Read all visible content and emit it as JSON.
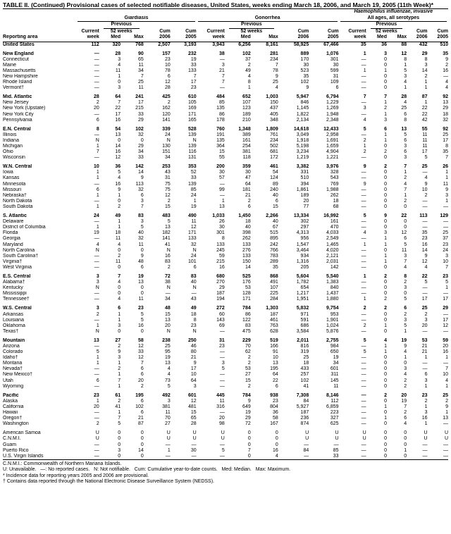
{
  "title": "TABLE II. (Continued) Provisional cases of selected notifiable diseases, United States, weeks ending March 18, 2006, and March 19, 2005 (11th Week)*",
  "groups": {
    "giardiasis": "Giardiasis",
    "gonorrhea": "Gonorrhea",
    "haemophilus_line1": "Haemophilus influenzae, invasive",
    "haemophilus_line2": "All ages, all serotypes"
  },
  "headers": {
    "previous": "Previous",
    "current": "Current",
    "weeks": "52 weeks",
    "cum": "Cum",
    "area": "Reporting area",
    "week": "week",
    "med": "Med",
    "max": "Max",
    "y2006": "2006",
    "y2005": "2005"
  },
  "rows": [
    {
      "area": "United States",
      "type": "us",
      "v": [
        "112",
        "320",
        "768",
        "2,507",
        "3,193",
        "3,943",
        "6,256",
        "8,161",
        "58,925",
        "67,466",
        "35",
        "36",
        "88",
        "432",
        "510"
      ]
    },
    {
      "type": "gap"
    },
    {
      "area": "New England",
      "type": "region",
      "v": [
        "—",
        "28",
        "90",
        "157",
        "232",
        "38",
        "102",
        "281",
        "889",
        "1,076",
        "1",
        "3",
        "12",
        "29",
        "35"
      ]
    },
    {
      "area": "Connecticut",
      "v": [
        "—",
        "3",
        "65",
        "23",
        "19",
        "—",
        "37",
        "234",
        "170",
        "301",
        "—",
        "0",
        "8",
        "8",
        "9"
      ]
    },
    {
      "area": "Maine",
      "v": [
        "—",
        "4",
        "11",
        "10",
        "33",
        "3",
        "2",
        "7",
        "30",
        "30",
        "—",
        "0",
        "1",
        "3",
        "2"
      ]
    },
    {
      "area": "Massachusetts",
      "v": [
        "—",
        "11",
        "34",
        "78",
        "133",
        "21",
        "49",
        "78",
        "523",
        "599",
        "1",
        "1",
        "5",
        "14",
        "16"
      ]
    },
    {
      "area": "New Hampshire",
      "v": [
        "—",
        "1",
        "7",
        "6",
        "7",
        "7",
        "4",
        "9",
        "35",
        "31",
        "—",
        "0",
        "3",
        "2",
        "—"
      ]
    },
    {
      "area": "Rhode Island",
      "v": [
        "—",
        "0",
        "25",
        "12",
        "17",
        "7",
        "8",
        "25",
        "102",
        "109",
        "—",
        "0",
        "4",
        "1",
        "4"
      ]
    },
    {
      "area": "Vermont†",
      "v": [
        "—",
        "3",
        "11",
        "28",
        "23",
        "—",
        "1",
        "4",
        "9",
        "6",
        "—",
        "0",
        "1",
        "1",
        "4"
      ]
    },
    {
      "type": "gap"
    },
    {
      "area": "Mid. Atlantic",
      "type": "region",
      "v": [
        "28",
        "64",
        "241",
        "425",
        "610",
        "484",
        "652",
        "1,003",
        "5,947",
        "6,794",
        "7",
        "7",
        "28",
        "87",
        "92"
      ]
    },
    {
      "area": "New Jersey",
      "v": [
        "2",
        "7",
        "17",
        "2",
        "105",
        "85",
        "107",
        "150",
        "846",
        "1,229",
        "—",
        "1",
        "4",
        "1",
        "13"
      ]
    },
    {
      "area": "New York (Upstate)",
      "v": [
        "20",
        "22",
        "215",
        "162",
        "169",
        "135",
        "123",
        "437",
        "1,145",
        "1,269",
        "3",
        "2",
        "25",
        "22",
        "29"
      ]
    },
    {
      "area": "New York City",
      "v": [
        "—",
        "17",
        "33",
        "120",
        "171",
        "86",
        "189",
        "405",
        "1,822",
        "1,948",
        "—",
        "1",
        "6",
        "22",
        "18"
      ]
    },
    {
      "area": "Pennsylvania",
      "v": [
        "6",
        "16",
        "29",
        "141",
        "165",
        "178",
        "210",
        "348",
        "2,134",
        "2,348",
        "4",
        "3",
        "8",
        "42",
        "32"
      ]
    },
    {
      "type": "gap"
    },
    {
      "area": "E.N. Central",
      "type": "region",
      "v": [
        "8",
        "54",
        "102",
        "339",
        "528",
        "760",
        "1,348",
        "1,809",
        "14,618",
        "12,433",
        "5",
        "6",
        "13",
        "55",
        "92"
      ]
    },
    {
      "area": "Illinois",
      "v": [
        "—",
        "13",
        "32",
        "24",
        "139",
        "191",
        "389",
        "761",
        "3,049",
        "2,958",
        "—",
        "1",
        "5",
        "11",
        "25"
      ]
    },
    {
      "area": "Indiana",
      "v": [
        "N",
        "0",
        "0",
        "N",
        "N",
        "135",
        "161",
        "234",
        "1,918",
        "1,691",
        "2",
        "1",
        "6",
        "11",
        "17"
      ]
    },
    {
      "area": "Michigan",
      "v": [
        "1",
        "14",
        "29",
        "130",
        "139",
        "364",
        "254",
        "502",
        "5,198",
        "1,659",
        "1",
        "0",
        "3",
        "11",
        "8"
      ]
    },
    {
      "area": "Ohio",
      "v": [
        "7",
        "16",
        "34",
        "151",
        "116",
        "15",
        "381",
        "681",
        "3,234",
        "4,904",
        "2",
        "2",
        "6",
        "17",
        "35"
      ]
    },
    {
      "area": "Wisconsin",
      "v": [
        "—",
        "12",
        "33",
        "34",
        "131",
        "55",
        "118",
        "172",
        "1,219",
        "1,221",
        "—",
        "0",
        "3",
        "5",
        "7"
      ]
    },
    {
      "type": "gap"
    },
    {
      "area": "W.N. Central",
      "type": "region",
      "v": [
        "10",
        "36",
        "142",
        "253",
        "353",
        "200",
        "359",
        "461",
        "3,382",
        "3,976",
        "9",
        "2",
        "7",
        "25",
        "26"
      ]
    },
    {
      "area": "Iowa",
      "v": [
        "1",
        "5",
        "14",
        "43",
        "52",
        "30",
        "30",
        "54",
        "331",
        "328",
        "—",
        "0",
        "1",
        "—",
        "1"
      ]
    },
    {
      "area": "Kansas",
      "v": [
        "1",
        "4",
        "9",
        "31",
        "33",
        "57",
        "47",
        "124",
        "510",
        "543",
        "—",
        "0",
        "2",
        "4",
        "1"
      ]
    },
    {
      "area": "Minnesota",
      "v": [
        "—",
        "16",
        "113",
        "75",
        "139",
        "—",
        "64",
        "89",
        "394",
        "769",
        "9",
        "0",
        "4",
        "9",
        "11"
      ]
    },
    {
      "area": "Missouri",
      "v": [
        "6",
        "9",
        "32",
        "75",
        "85",
        "99",
        "181",
        "240",
        "1,861",
        "1,988",
        "—",
        "0",
        "7",
        "10",
        "9"
      ]
    },
    {
      "area": "Nebraska†",
      "v": [
        "1",
        "1",
        "6",
        "12",
        "24",
        "—",
        "21",
        "40",
        "189",
        "262",
        "—",
        "0",
        "1",
        "2",
        "3"
      ]
    },
    {
      "area": "North Dakota",
      "v": [
        "—",
        "0",
        "3",
        "2",
        "1",
        "1",
        "2",
        "6",
        "20",
        "18",
        "—",
        "0",
        "2",
        "—",
        "1"
      ]
    },
    {
      "area": "South Dakota",
      "v": [
        "1",
        "2",
        "7",
        "15",
        "19",
        "13",
        "6",
        "15",
        "77",
        "68",
        "—",
        "0",
        "0",
        "—",
        "—"
      ]
    },
    {
      "type": "gap"
    },
    {
      "area": "S. Atlantic",
      "type": "region",
      "v": [
        "24",
        "49",
        "83",
        "483",
        "490",
        "1,033",
        "1,450",
        "2,266",
        "13,334",
        "16,992",
        "5",
        "9",
        "22",
        "113",
        "129"
      ]
    },
    {
      "area": "Delaware",
      "v": [
        "—",
        "1",
        "3",
        "5",
        "11",
        "26",
        "18",
        "40",
        "302",
        "161",
        "—",
        "0",
        "0",
        "—",
        "—"
      ]
    },
    {
      "area": "District of Columbia",
      "v": [
        "1",
        "1",
        "5",
        "13",
        "12",
        "30",
        "40",
        "67",
        "297",
        "470",
        "—",
        "0",
        "0",
        "—",
        "—"
      ]
    },
    {
      "area": "Florida",
      "v": [
        "19",
        "18",
        "40",
        "182",
        "171",
        "301",
        "398",
        "515",
        "4,313",
        "4,033",
        "4",
        "3",
        "12",
        "35",
        "25"
      ]
    },
    {
      "area": "Georgia",
      "v": [
        "—",
        "11",
        "32",
        "141",
        "133",
        "8",
        "262",
        "895",
        "956",
        "2,549",
        "—",
        "1",
        "6",
        "23",
        "37"
      ]
    },
    {
      "area": "Maryland",
      "v": [
        "4",
        "4",
        "11",
        "41",
        "32",
        "133",
        "133",
        "242",
        "1,547",
        "1,465",
        "1",
        "1",
        "5",
        "16",
        "23"
      ]
    },
    {
      "area": "North Carolina",
      "v": [
        "N",
        "0",
        "0",
        "N",
        "N",
        "245",
        "276",
        "766",
        "3,464",
        "4,020",
        "—",
        "0",
        "11",
        "14",
        "24"
      ]
    },
    {
      "area": "South Carolina†",
      "v": [
        "—",
        "2",
        "9",
        "16",
        "24",
        "59",
        "133",
        "783",
        "934",
        "2,121",
        "—",
        "1",
        "3",
        "9",
        "3"
      ]
    },
    {
      "area": "Virginia†",
      "v": [
        "—",
        "11",
        "48",
        "83",
        "101",
        "215",
        "150",
        "289",
        "1,316",
        "2,031",
        "—",
        "1",
        "7",
        "12",
        "10"
      ]
    },
    {
      "area": "West Virginia",
      "v": [
        "—",
        "0",
        "6",
        "2",
        "6",
        "16",
        "14",
        "35",
        "205",
        "142",
        "—",
        "0",
        "4",
        "4",
        "7"
      ]
    },
    {
      "type": "gap"
    },
    {
      "area": "E.S. Central",
      "type": "region",
      "v": [
        "3",
        "7",
        "19",
        "72",
        "83",
        "680",
        "525",
        "868",
        "5,604",
        "5,540",
        "1",
        "2",
        "8",
        "22",
        "23"
      ]
    },
    {
      "area": "Alabama†",
      "v": [
        "3",
        "4",
        "13",
        "38",
        "40",
        "270",
        "176",
        "491",
        "1,782",
        "1,383",
        "—",
        "0",
        "2",
        "5",
        "5"
      ]
    },
    {
      "area": "Kentucky",
      "v": [
        "N",
        "0",
        "0",
        "N",
        "N",
        "29",
        "53",
        "107",
        "654",
        "840",
        "—",
        "0",
        "3",
        "—",
        "1"
      ]
    },
    {
      "area": "Mississippi",
      "v": [
        "—",
        "0",
        "0",
        "—",
        "—",
        "187",
        "128",
        "225",
        "1,217",
        "1,437",
        "—",
        "0",
        "0",
        "—",
        "—"
      ]
    },
    {
      "area": "Tennessee†",
      "v": [
        "—",
        "4",
        "11",
        "34",
        "43",
        "194",
        "171",
        "284",
        "1,951",
        "1,880",
        "1",
        "2",
        "5",
        "17",
        "17"
      ]
    },
    {
      "type": "gap"
    },
    {
      "area": "W.S. Central",
      "type": "region",
      "v": [
        "3",
        "6",
        "23",
        "48",
        "49",
        "272",
        "784",
        "1,303",
        "5,832",
        "9,754",
        "2",
        "2",
        "6",
        "25",
        "29"
      ]
    },
    {
      "area": "Arkansas",
      "v": [
        "2",
        "1",
        "5",
        "15",
        "18",
        "60",
        "86",
        "187",
        "971",
        "953",
        "—",
        "0",
        "2",
        "2",
        "—"
      ]
    },
    {
      "area": "Louisiana",
      "v": [
        "—",
        "1",
        "5",
        "13",
        "8",
        "143",
        "122",
        "461",
        "591",
        "1,901",
        "—",
        "0",
        "3",
        "3",
        "17"
      ]
    },
    {
      "area": "Oklahoma",
      "v": [
        "1",
        "3",
        "16",
        "20",
        "23",
        "69",
        "83",
        "763",
        "686",
        "1,024",
        "2",
        "1",
        "5",
        "20",
        "12"
      ]
    },
    {
      "area": "Texas†",
      "v": [
        "N",
        "0",
        "0",
        "N",
        "N",
        "—",
        "475",
        "628",
        "3,584",
        "5,876",
        "—",
        "0",
        "1",
        "—",
        "—"
      ]
    },
    {
      "type": "gap"
    },
    {
      "area": "Mountain",
      "type": "region",
      "v": [
        "13",
        "27",
        "58",
        "238",
        "250",
        "31",
        "229",
        "519",
        "2,011",
        "2,755",
        "5",
        "4",
        "19",
        "53",
        "59"
      ]
    },
    {
      "area": "Arizona",
      "v": [
        "—",
        "2",
        "12",
        "25",
        "46",
        "23",
        "70",
        "166",
        "816",
        "984",
        "—",
        "1",
        "9",
        "21",
        "20"
      ]
    },
    {
      "area": "Colorado",
      "v": [
        "5",
        "9",
        "33",
        "95",
        "80",
        "—",
        "62",
        "91",
        "319",
        "650",
        "5",
        "1",
        "4",
        "21",
        "16"
      ]
    },
    {
      "area": "Idaho†",
      "v": [
        "1",
        "3",
        "12",
        "19",
        "21",
        "—",
        "2",
        "10",
        "25",
        "19",
        "—",
        "0",
        "1",
        "1",
        "1"
      ]
    },
    {
      "area": "Montana",
      "v": [
        "1",
        "1",
        "7",
        "13",
        "9",
        "3",
        "2",
        "13",
        "18",
        "34",
        "—",
        "0",
        "0",
        "—",
        "—"
      ]
    },
    {
      "area": "Nevada†",
      "v": [
        "—",
        "2",
        "6",
        "4",
        "17",
        "5",
        "53",
        "195",
        "433",
        "601",
        "—",
        "0",
        "3",
        "—",
        "7"
      ]
    },
    {
      "area": "New Mexico†",
      "v": [
        "—",
        "1",
        "6",
        "4",
        "10",
        "—",
        "27",
        "64",
        "257",
        "311",
        "—",
        "0",
        "4",
        "6",
        "10"
      ]
    },
    {
      "area": "Utah",
      "v": [
        "6",
        "7",
        "20",
        "73",
        "64",
        "—",
        "15",
        "22",
        "102",
        "145",
        "—",
        "0",
        "2",
        "3",
        "4"
      ]
    },
    {
      "area": "Wyoming",
      "v": [
        "—",
        "1",
        "2",
        "5",
        "3",
        "—",
        "2",
        "6",
        "41",
        "11",
        "—",
        "0",
        "2",
        "1",
        "1"
      ]
    },
    {
      "type": "gap"
    },
    {
      "area": "Pacific",
      "type": "region",
      "v": [
        "23",
        "61",
        "195",
        "492",
        "601",
        "445",
        "784",
        "938",
        "7,308",
        "8,146",
        "—",
        "2",
        "20",
        "23",
        "25"
      ]
    },
    {
      "area": "Alaska",
      "v": [
        "1",
        "2",
        "6",
        "3",
        "12",
        "11",
        "9",
        "23",
        "84",
        "112",
        "—",
        "0",
        "19",
        "2",
        "2"
      ]
    },
    {
      "area": "California",
      "v": [
        "20",
        "41",
        "102",
        "381",
        "481",
        "316",
        "649",
        "804",
        "5,927",
        "6,859",
        "—",
        "1",
        "7",
        "1",
        "9"
      ]
    },
    {
      "area": "Hawaii",
      "v": [
        "—",
        "1",
        "6",
        "11",
        "15",
        "—",
        "19",
        "36",
        "187",
        "223",
        "—",
        "0",
        "2",
        "3",
        "1"
      ]
    },
    {
      "area": "Oregon†",
      "v": [
        "—",
        "7",
        "21",
        "70",
        "65",
        "20",
        "29",
        "58",
        "236",
        "327",
        "—",
        "1",
        "6",
        "16",
        "13"
      ]
    },
    {
      "area": "Washington",
      "v": [
        "2",
        "5",
        "87",
        "27",
        "28",
        "98",
        "72",
        "167",
        "874",
        "625",
        "—",
        "0",
        "4",
        "1",
        "—"
      ]
    },
    {
      "type": "gap"
    },
    {
      "area": "American Samoa",
      "v": [
        "U",
        "0",
        "0",
        "U",
        "U",
        "U",
        "0",
        "0",
        "U",
        "U",
        "U",
        "0",
        "0",
        "U",
        "U"
      ]
    },
    {
      "area": "C.N.M.I.",
      "v": [
        "U",
        "0",
        "0",
        "U",
        "U",
        "U",
        "0",
        "0",
        "U",
        "U",
        "U",
        "0",
        "0",
        "U",
        "U"
      ]
    },
    {
      "area": "Guam",
      "v": [
        "—",
        "0",
        "0",
        "—",
        "—",
        "—",
        "0",
        "0",
        "—",
        "—",
        "—",
        "0",
        "0",
        "—",
        "—"
      ]
    },
    {
      "area": "Puerto Rico",
      "v": [
        "—",
        "3",
        "14",
        "1",
        "30",
        "5",
        "7",
        "16",
        "84",
        "85",
        "—",
        "0",
        "1",
        "—",
        "—"
      ]
    },
    {
      "area": "U.S. Virgin Islands",
      "v": [
        "—",
        "0",
        "0",
        "—",
        "—",
        "—",
        "0",
        "4",
        "—",
        "33",
        "—",
        "0",
        "0",
        "—",
        "—"
      ]
    }
  ],
  "footnotes": [
    "C.N.M.I.: Commonwealth of Northern Mariana Islands.",
    "U: Unavailable.   —: No reported cases.   N: Not notifiable.   Cum: Cumulative year-to-date counts.   Med: Median.   Max: Maximum.",
    "* Incidence data for reporting years 2005 and 2006 are provisional.",
    "† Contains data reported through the National Electronic Disease Surveillance System (NEDSS)."
  ]
}
